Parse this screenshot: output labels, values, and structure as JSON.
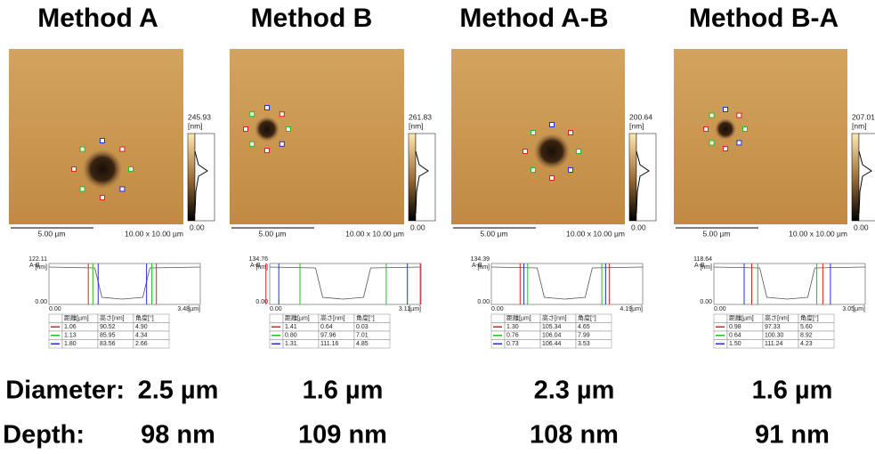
{
  "panels": [
    {
      "title": "Method A",
      "scale_max": "245.93",
      "scale_unit": "[nm]",
      "scale_min": "0.00",
      "scale_bar": "5.00 µm",
      "size": "10.00 x 10.00 µm",
      "profile": {
        "label": "A-B",
        "ymax": "122.11",
        "yunit": "[nm]",
        "ymin": "0.00",
        "xmin": "0.00",
        "xmax": "3.48",
        "xunit": "[µm]"
      },
      "table": {
        "headers": [
          "距離[µm]",
          "高さ[nm]",
          "角度[°]"
        ],
        "rows": [
          [
            "1.06",
            "90.52",
            "4.90"
          ],
          [
            "1.13",
            "85.95",
            "4.34"
          ],
          [
            "1.80",
            "83.56",
            "2.66"
          ]
        ]
      },
      "diameter": "2.5 µm",
      "depth": "98 nm"
    },
    {
      "title": "Method B",
      "scale_max": "261.83",
      "scale_unit": "[nm]",
      "scale_min": "0.00",
      "scale_bar": "5.00 µm",
      "size": "10.00 x 10.00 µm",
      "profile": {
        "label": "A-B",
        "ymax": "134.76",
        "yunit": "[nm]",
        "ymin": "0.00",
        "xmin": "0.00",
        "xmax": "3.11",
        "xunit": "[µm]"
      },
      "table": {
        "headers": [
          "距離[µm]",
          "高さ[nm]",
          "角度[°]"
        ],
        "rows": [
          [
            "1.41",
            "0.64",
            "0.03"
          ],
          [
            "0.80",
            "97.96",
            "7.01"
          ],
          [
            "1.31",
            "111.16",
            "4.85"
          ]
        ]
      },
      "diameter": "1.6 µm",
      "depth": "109 nm"
    },
    {
      "title": "Method A-B",
      "scale_max": "200.64",
      "scale_unit": "[nm]",
      "scale_min": "0.00",
      "scale_bar": "5.00 µm",
      "size": "10.00 x 10.00 µm",
      "profile": {
        "label": "A-B",
        "ymax": "134.39",
        "yunit": "[nm]",
        "ymin": "0.00",
        "xmin": "0.00",
        "xmax": "4.19",
        "xunit": "[µm]"
      },
      "table": {
        "headers": [
          "距離[µm]",
          "高さ[nm]",
          "角度[°]"
        ],
        "rows": [
          [
            "1.30",
            "105.34",
            "4.65"
          ],
          [
            "0.76",
            "106.04",
            "7.99"
          ],
          [
            "0.73",
            "106.44",
            "3.53"
          ]
        ]
      },
      "diameter": "2.3 µm",
      "depth": "108 nm"
    },
    {
      "title": "Method B-A",
      "scale_max": "207.01",
      "scale_unit": "[nm]",
      "scale_min": "0.00",
      "scale_bar": "5.00 µm",
      "size": "10.00 x 10.00 µm",
      "profile": {
        "label": "A-B",
        "ymax": "118.64",
        "yunit": "[nm]",
        "ymin": "0.00",
        "xmin": "0.00",
        "xmax": "3.05",
        "xunit": "[µm]"
      },
      "table": {
        "headers": [
          "距離[µm]",
          "高さ[nm]",
          "角度[°]"
        ],
        "rows": [
          [
            "0.98",
            "97.33",
            "5.60"
          ],
          [
            "0.64",
            "100.30",
            "8.92"
          ],
          [
            "1.50",
            "111.24",
            "4.23"
          ]
        ]
      },
      "diameter": "1.6 µm",
      "depth": "91 nm"
    }
  ],
  "row_labels": {
    "diameter": "Diameter:",
    "depth": "Depth:"
  }
}
